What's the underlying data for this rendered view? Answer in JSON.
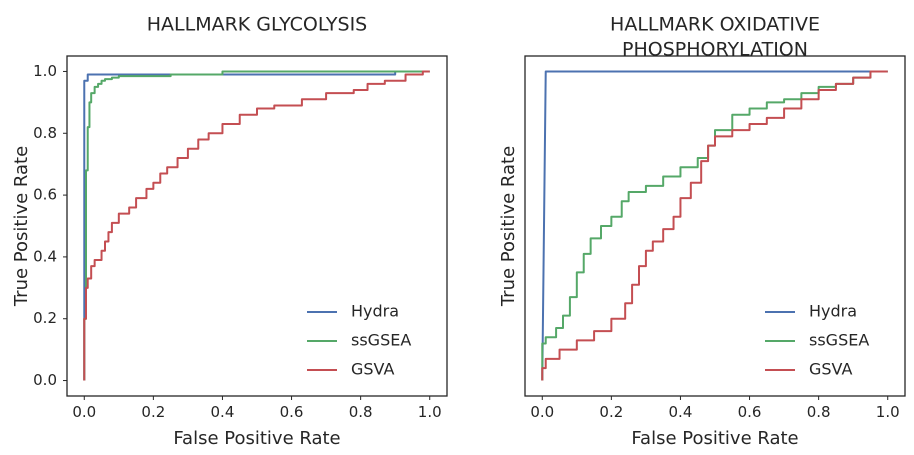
{
  "chart_data": [
    {
      "type": "line",
      "title": "HALLMARK GLYCOLYSIS",
      "xlabel": "False Positive Rate",
      "ylabel": "True Positive Rate",
      "xlim": [
        -0.05,
        1.05
      ],
      "ylim": [
        -0.05,
        1.05
      ],
      "xticks": [
        "0.0",
        "0.2",
        "0.4",
        "0.6",
        "0.8",
        "1.0"
      ],
      "yticks": [
        "0.0",
        "0.2",
        "0.4",
        "0.6",
        "0.8",
        "1.0"
      ],
      "grid": false,
      "legend": "bottom-right",
      "series": [
        {
          "name": "Hydra",
          "color": "#4c72b0",
          "x": [
            0.0,
            0.0,
            0.01,
            0.01,
            0.9,
            0.9,
            1.0
          ],
          "y": [
            0.0,
            0.97,
            0.97,
            0.99,
            0.99,
            1.0,
            1.0
          ]
        },
        {
          "name": "ssGSEA",
          "color": "#55a868",
          "x": [
            0.0,
            0.0,
            0.005,
            0.005,
            0.01,
            0.01,
            0.015,
            0.015,
            0.02,
            0.02,
            0.03,
            0.03,
            0.04,
            0.04,
            0.05,
            0.05,
            0.06,
            0.06,
            0.08,
            0.08,
            0.1,
            0.1,
            0.25,
            0.25,
            0.4,
            0.4,
            0.88,
            0.88,
            1.0
          ],
          "y": [
            0.0,
            0.2,
            0.2,
            0.68,
            0.68,
            0.82,
            0.82,
            0.9,
            0.9,
            0.93,
            0.93,
            0.95,
            0.95,
            0.96,
            0.96,
            0.97,
            0.97,
            0.975,
            0.975,
            0.98,
            0.98,
            0.985,
            0.985,
            0.99,
            0.99,
            1.0,
            1.0,
            1.0,
            1.0
          ]
        },
        {
          "name": "GSVA",
          "color": "#c44e52",
          "x": [
            0.0,
            0.0,
            0.005,
            0.005,
            0.01,
            0.01,
            0.02,
            0.02,
            0.03,
            0.03,
            0.05,
            0.05,
            0.06,
            0.06,
            0.07,
            0.07,
            0.08,
            0.08,
            0.1,
            0.1,
            0.13,
            0.13,
            0.15,
            0.15,
            0.18,
            0.18,
            0.2,
            0.2,
            0.22,
            0.22,
            0.24,
            0.24,
            0.27,
            0.27,
            0.3,
            0.3,
            0.33,
            0.33,
            0.36,
            0.36,
            0.4,
            0.4,
            0.45,
            0.45,
            0.5,
            0.5,
            0.55,
            0.55,
            0.63,
            0.63,
            0.7,
            0.7,
            0.78,
            0.78,
            0.82,
            0.82,
            0.87,
            0.87,
            0.93,
            0.93,
            0.98,
            0.98,
            1.0
          ],
          "y": [
            0.0,
            0.2,
            0.2,
            0.3,
            0.3,
            0.33,
            0.33,
            0.37,
            0.37,
            0.39,
            0.39,
            0.42,
            0.42,
            0.45,
            0.45,
            0.48,
            0.48,
            0.51,
            0.51,
            0.54,
            0.54,
            0.56,
            0.56,
            0.59,
            0.59,
            0.62,
            0.62,
            0.64,
            0.64,
            0.67,
            0.67,
            0.69,
            0.69,
            0.72,
            0.72,
            0.75,
            0.75,
            0.78,
            0.78,
            0.8,
            0.8,
            0.83,
            0.83,
            0.86,
            0.86,
            0.88,
            0.88,
            0.89,
            0.89,
            0.91,
            0.91,
            0.93,
            0.93,
            0.94,
            0.94,
            0.96,
            0.96,
            0.97,
            0.97,
            0.99,
            0.99,
            1.0,
            1.0
          ]
        }
      ]
    },
    {
      "type": "line",
      "title": "HALLMARK OXIDATIVE\nPHOSPHORYLATION",
      "xlabel": "False Positive Rate",
      "ylabel": "True Positive Rate",
      "xlim": [
        -0.05,
        1.05
      ],
      "ylim": [
        -0.05,
        1.05
      ],
      "xticks": [
        "0.0",
        "0.2",
        "0.4",
        "0.6",
        "0.8",
        "1.0"
      ],
      "yticks": [],
      "grid": false,
      "legend": "bottom-right",
      "series": [
        {
          "name": "Hydra",
          "color": "#4c72b0",
          "x": [
            0.0,
            0.01,
            0.01,
            0.95,
            0.95,
            1.0
          ],
          "y": [
            0.0,
            1.0,
            1.0,
            1.0,
            1.0,
            1.0
          ]
        },
        {
          "name": "ssGSEA",
          "color": "#55a868",
          "x": [
            0.0,
            0.0,
            0.01,
            0.01,
            0.04,
            0.04,
            0.06,
            0.06,
            0.08,
            0.08,
            0.1,
            0.1,
            0.12,
            0.12,
            0.14,
            0.14,
            0.17,
            0.17,
            0.2,
            0.2,
            0.23,
            0.23,
            0.25,
            0.25,
            0.3,
            0.3,
            0.35,
            0.35,
            0.4,
            0.4,
            0.45,
            0.45,
            0.48,
            0.48,
            0.5,
            0.5,
            0.55,
            0.55,
            0.6,
            0.6,
            0.65,
            0.65,
            0.7,
            0.7,
            0.75,
            0.75,
            0.8,
            0.8,
            0.85,
            0.85,
            0.9,
            0.9,
            0.95,
            0.95,
            1.0
          ],
          "y": [
            0.0,
            0.12,
            0.12,
            0.14,
            0.14,
            0.17,
            0.17,
            0.21,
            0.21,
            0.27,
            0.27,
            0.35,
            0.35,
            0.41,
            0.41,
            0.46,
            0.46,
            0.5,
            0.5,
            0.53,
            0.53,
            0.58,
            0.58,
            0.61,
            0.61,
            0.63,
            0.63,
            0.66,
            0.66,
            0.69,
            0.69,
            0.72,
            0.72,
            0.76,
            0.76,
            0.81,
            0.81,
            0.86,
            0.86,
            0.88,
            0.88,
            0.9,
            0.9,
            0.91,
            0.91,
            0.93,
            0.93,
            0.95,
            0.95,
            0.96,
            0.96,
            0.98,
            0.98,
            1.0,
            1.0
          ]
        },
        {
          "name": "GSVA",
          "color": "#c44e52",
          "x": [
            0.0,
            0.0,
            0.01,
            0.01,
            0.05,
            0.05,
            0.1,
            0.1,
            0.15,
            0.15,
            0.2,
            0.2,
            0.24,
            0.24,
            0.26,
            0.26,
            0.28,
            0.28,
            0.3,
            0.3,
            0.32,
            0.32,
            0.35,
            0.35,
            0.38,
            0.38,
            0.4,
            0.4,
            0.43,
            0.43,
            0.46,
            0.46,
            0.48,
            0.48,
            0.5,
            0.5,
            0.55,
            0.55,
            0.6,
            0.6,
            0.65,
            0.65,
            0.7,
            0.7,
            0.75,
            0.75,
            0.8,
            0.8,
            0.85,
            0.85,
            0.9,
            0.9,
            0.95,
            0.95,
            1.0
          ],
          "y": [
            0.0,
            0.04,
            0.04,
            0.07,
            0.07,
            0.1,
            0.1,
            0.13,
            0.13,
            0.16,
            0.16,
            0.2,
            0.2,
            0.25,
            0.25,
            0.31,
            0.31,
            0.37,
            0.37,
            0.42,
            0.42,
            0.45,
            0.45,
            0.49,
            0.49,
            0.53,
            0.53,
            0.59,
            0.59,
            0.64,
            0.64,
            0.71,
            0.71,
            0.76,
            0.76,
            0.79,
            0.79,
            0.81,
            0.81,
            0.83,
            0.83,
            0.85,
            0.85,
            0.88,
            0.88,
            0.91,
            0.91,
            0.94,
            0.94,
            0.96,
            0.96,
            0.98,
            0.98,
            1.0,
            1.0
          ]
        }
      ]
    }
  ]
}
